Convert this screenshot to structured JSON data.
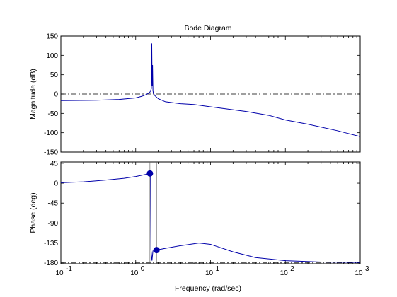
{
  "chart_data": {
    "type": "line",
    "title": "Bode Diagram",
    "xlabel": "Frequency  (rad/sec)",
    "x_scale": "log",
    "xlim": [
      0.1,
      1000
    ],
    "x_tick_labels": [
      {
        "base": "10",
        "exp": "-1"
      },
      {
        "base": "10",
        "exp": "0"
      },
      {
        "base": "10",
        "exp": "1"
      },
      {
        "base": "10",
        "exp": "2"
      },
      {
        "base": "10",
        "exp": "3"
      }
    ],
    "line_color": "#0000aa",
    "reference_line_color": "#000000",
    "panels": [
      {
        "name": "magnitude",
        "ylabel": "Magnitude (dB)",
        "ylim": [
          -150,
          150
        ],
        "yticks": [
          -150,
          -100,
          -50,
          0,
          50,
          100,
          150
        ],
        "reference_y": 0,
        "series": [
          {
            "x": [
              0.1,
              0.3,
              0.6,
              1.0,
              1.2,
              1.4,
              1.55,
              1.62,
              1.64,
              1.66,
              1.68,
              1.7,
              1.72,
              1.75,
              1.8,
              2.0,
              2.5,
              4,
              6,
              10,
              30,
              60,
              100,
              200,
              500,
              1000
            ],
            "y": [
              -17,
              -16,
              -14,
              -10,
              -6,
              -1,
              5,
              14,
              131,
              22,
              75,
              10,
              2,
              0,
              -4,
              -12,
              -20,
              -25,
              -27,
              -33,
              -45,
              -55,
              -67,
              -78,
              -95,
              -110
            ]
          }
        ],
        "markers": []
      },
      {
        "name": "phase",
        "ylabel": "Phase (deg)",
        "ylim": [
          -182,
          48
        ],
        "yticks": [
          -180,
          -135,
          -90,
          -45,
          0,
          45
        ],
        "reference_y": -180,
        "series": [
          {
            "x": [
              0.1,
              0.2,
              0.4,
              0.7,
              1.0,
              1.3,
              1.58,
              1.6,
              1.65,
              1.7,
              1.9,
              2.5,
              4,
              7,
              10,
              20,
              40,
              100,
              300,
              1000
            ],
            "y": [
              1,
              3,
              7,
              11,
              15,
              19,
              22,
              -150,
              -175,
              -153,
              -151,
              -147,
              -141,
              -135,
              -138,
              -155,
              -168,
              -175,
              -178,
              -179
            ]
          }
        ],
        "markers": [
          {
            "x": 1.55,
            "y": 22
          },
          {
            "x": 1.9,
            "y": -151
          }
        ],
        "stems": [
          {
            "x": 1.55,
            "y": 22
          },
          {
            "x": 1.9,
            "y": -151
          }
        ]
      }
    ],
    "grid": false,
    "legend": "none"
  }
}
